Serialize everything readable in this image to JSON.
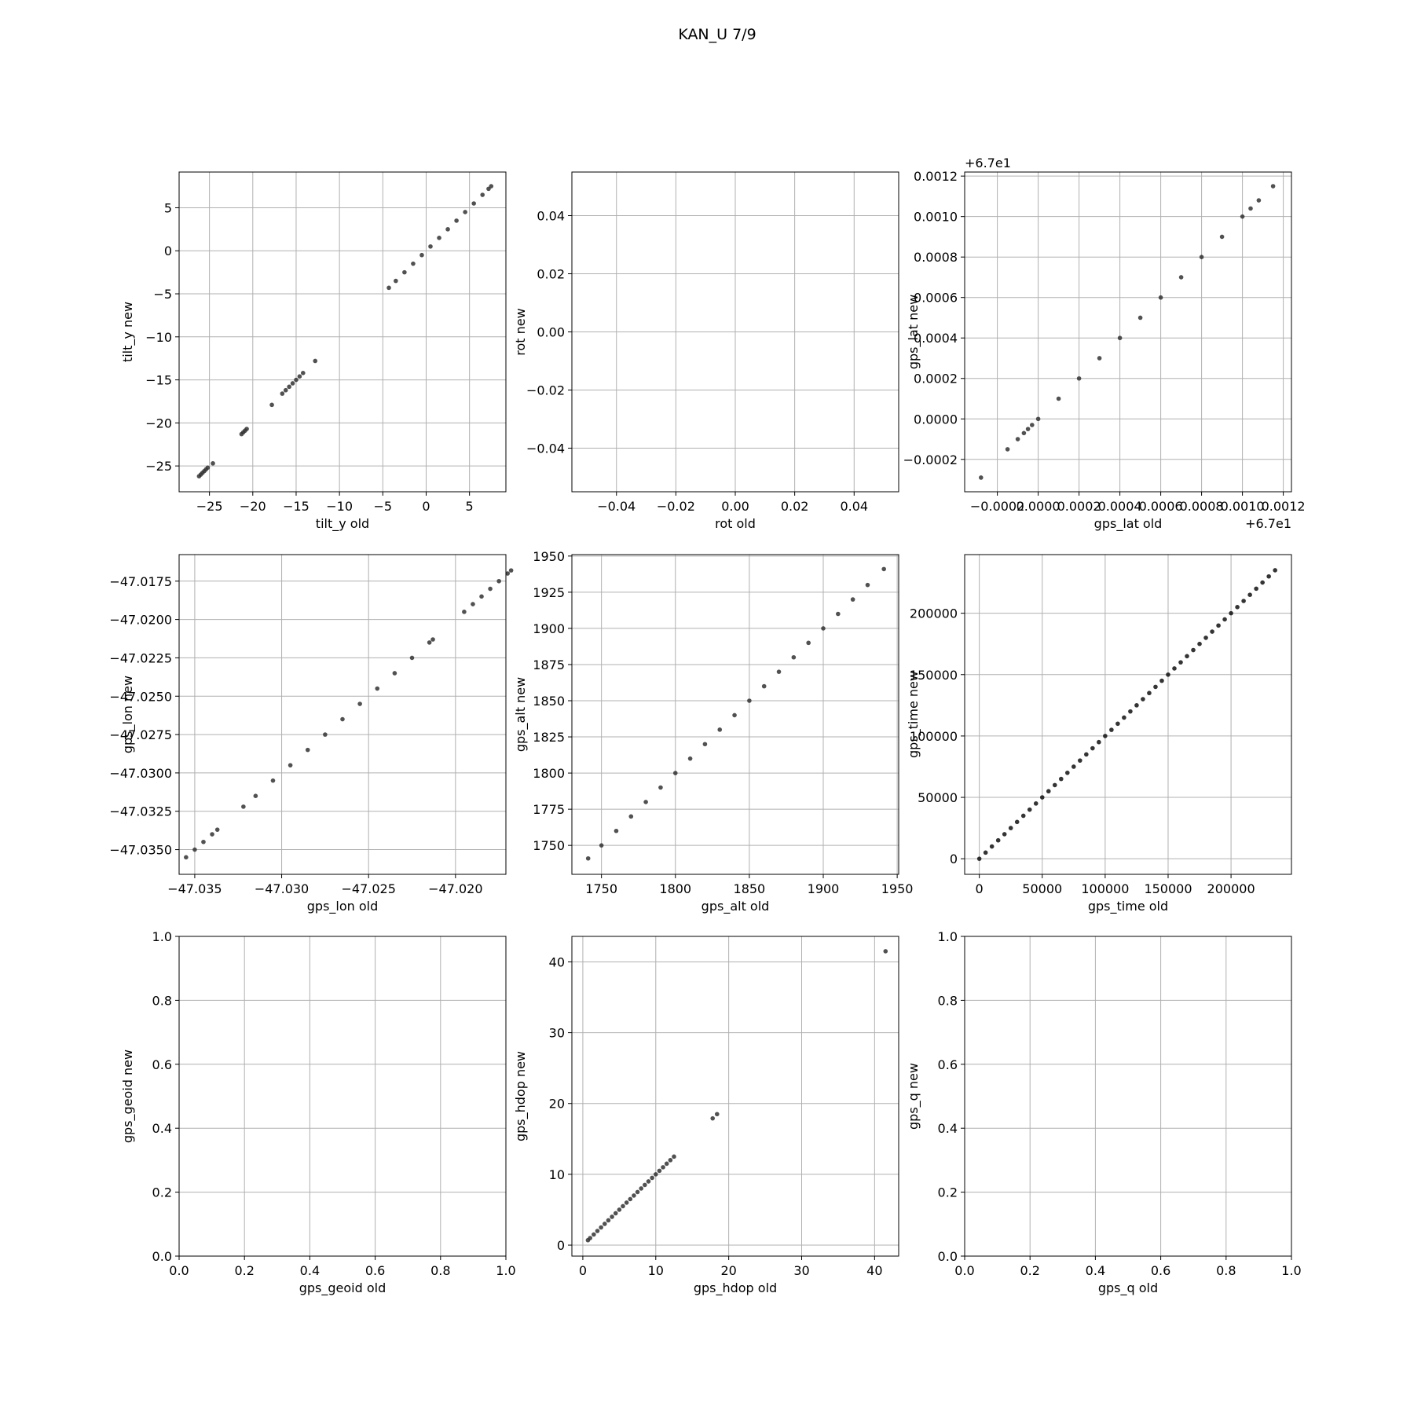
{
  "title": "KAN_U 7/9",
  "chart_data": [
    {
      "type": "scatter",
      "xlabel": "tilt_y old",
      "ylabel": "tilt_y new",
      "grid": true,
      "color": "#333333",
      "xlim": [
        -28.5,
        9.2
      ],
      "ylim": [
        -28,
        9.15
      ],
      "xticks": [
        {
          "value": -25,
          "label": "−25"
        },
        {
          "value": -20,
          "label": "−20"
        },
        {
          "value": -15,
          "label": "−15"
        },
        {
          "value": -10,
          "label": "−10"
        },
        {
          "value": -5,
          "label": "−5"
        },
        0,
        5
      ],
      "yticks": [
        {
          "value": -25,
          "label": "−25"
        },
        {
          "value": -20,
          "label": "−20"
        },
        {
          "value": -15,
          "label": "−15"
        },
        {
          "value": -10,
          "label": "−10"
        },
        {
          "value": -5,
          "label": "−5"
        },
        0,
        5
      ],
      "x": [
        -26.2,
        -26,
        -25.8,
        -25.6,
        -25.4,
        -25.2,
        -24.6,
        -21.3,
        -21.1,
        -20.9,
        -20.7,
        -17.8,
        -16.6,
        -16.2,
        -15.8,
        -15.4,
        -15,
        -14.6,
        -14.2,
        -12.8,
        -4.3,
        -3.5,
        -2.5,
        -1.5,
        -0.5,
        0.5,
        1.5,
        2.5,
        3.5,
        4.5,
        5.5,
        6.5,
        7.2,
        7.5
      ],
      "values": [
        -26.2,
        -26,
        -25.8,
        -25.6,
        -25.4,
        -25.2,
        -24.7,
        -21.3,
        -21.1,
        -20.9,
        -20.7,
        -17.9,
        -16.6,
        -16.2,
        -15.8,
        -15.4,
        -15,
        -14.6,
        -14.2,
        -12.8,
        -4.3,
        -3.5,
        -2.5,
        -1.5,
        -0.5,
        0.5,
        1.5,
        2.5,
        3.5,
        4.5,
        5.5,
        6.5,
        7.2,
        7.5
      ]
    },
    {
      "type": "scatter",
      "xlabel": "rot old",
      "ylabel": "rot new",
      "grid": true,
      "color": "#333333",
      "xlim": [
        -0.055,
        0.055
      ],
      "ylim": [
        -0.055,
        0.055
      ],
      "xticks": [
        {
          "value": -0.04,
          "label": "−0.04"
        },
        {
          "value": -0.02,
          "label": "−0.02"
        },
        {
          "value": 0,
          "label": "0.00"
        },
        {
          "value": 0.02,
          "label": "0.02"
        },
        {
          "value": 0.04,
          "label": "0.04"
        }
      ],
      "yticks": [
        {
          "value": -0.04,
          "label": "−0.04"
        },
        {
          "value": -0.02,
          "label": "−0.02"
        },
        {
          "value": 0,
          "label": "0.00"
        },
        {
          "value": 0.02,
          "label": "0.02"
        },
        {
          "value": 0.04,
          "label": "0.04"
        }
      ]
    },
    {
      "type": "scatter",
      "xlabel": "gps_lat old",
      "ylabel": "gps_lat new",
      "grid": true,
      "color": "#333333",
      "x_offset_text": "+6.7e1",
      "y_offset_text": "+6.7e1",
      "xlim": [
        -0.00036,
        0.00124
      ],
      "ylim": [
        -0.00036,
        0.00122
      ],
      "xticks": [
        {
          "value": -0.0002,
          "label": "−0.0002"
        },
        {
          "value": 0,
          "label": "0.0000"
        },
        0.0002,
        0.0004,
        0.0006,
        0.0008,
        {
          "value": 0.001,
          "label": "0.0010"
        },
        0.0012
      ],
      "yticks": [
        {
          "value": -0.0002,
          "label": "−0.0002"
        },
        {
          "value": 0,
          "label": "0.0000"
        },
        0.0002,
        0.0004,
        0.0006,
        0.0008,
        {
          "value": 0.001,
          "label": "0.0010"
        },
        0.0012
      ],
      "x": [
        -0.00028,
        -0.00015,
        -0.0001,
        -7e-05,
        -5e-05,
        -3e-05,
        0,
        0.0001,
        0.0002,
        0.0003,
        0.0004,
        0.0005,
        0.0006,
        0.0007,
        0.0008,
        0.0009,
        0.001,
        0.00104,
        0.00108,
        0.00115
      ],
      "values": [
        -0.00029,
        -0.00015,
        -0.0001,
        -7e-05,
        -5e-05,
        -3e-05,
        0,
        0.0001,
        0.0002,
        0.0003,
        0.0004,
        0.0005,
        0.0006,
        0.0007,
        0.0008,
        0.0009,
        0.001,
        0.00104,
        0.00108,
        0.00115
      ]
    },
    {
      "type": "scatter",
      "xlabel": "gps_lon old",
      "ylabel": "gps_lon new",
      "grid": true,
      "color": "#333333",
      "xlim": [
        -47.0359,
        -47.0171
      ],
      "ylim": [
        -47.03661,
        -47.01577
      ],
      "xticks": [
        {
          "value": -47.035,
          "label": "−47.035"
        },
        {
          "value": -47.03,
          "label": "−47.030"
        },
        {
          "value": -47.025,
          "label": "−47.025"
        },
        {
          "value": -47.02,
          "label": "−47.020"
        }
      ],
      "yticks": [
        {
          "value": -47.035,
          "label": "−47.0350"
        },
        {
          "value": -47.0325,
          "label": "−47.0325"
        },
        {
          "value": -47.03,
          "label": "−47.0300"
        },
        {
          "value": -47.0275,
          "label": "−47.0275"
        },
        {
          "value": -47.025,
          "label": "−47.0250"
        },
        {
          "value": -47.0225,
          "label": "−47.0225"
        },
        {
          "value": -47.02,
          "label": "−47.0200"
        },
        {
          "value": -47.0175,
          "label": "−47.0175"
        }
      ],
      "x": [
        -47.0355,
        -47.035,
        -47.0345,
        -47.034,
        -47.0337,
        -47.0322,
        -47.0315,
        -47.0305,
        -47.0295,
        -47.0285,
        -47.0275,
        -47.0265,
        -47.0255,
        -47.0245,
        -47.0235,
        -47.0225,
        -47.0215,
        -47.0213,
        -47.0195,
        -47.019,
        -47.0185,
        -47.018,
        -47.0175,
        -47.017,
        -47.0168
      ],
      "values": [
        -47.0355,
        -47.035,
        -47.0345,
        -47.034,
        -47.0337,
        -47.0322,
        -47.0315,
        -47.0305,
        -47.0295,
        -47.0285,
        -47.0275,
        -47.0265,
        -47.0255,
        -47.0245,
        -47.0235,
        -47.0225,
        -47.0215,
        -47.0213,
        -47.0195,
        -47.019,
        -47.0185,
        -47.018,
        -47.0175,
        -47.017,
        -47.0168
      ]
    },
    {
      "type": "scatter",
      "xlabel": "gps_alt old",
      "ylabel": "gps_alt new",
      "grid": true,
      "color": "#333333",
      "xlim": [
        1730,
        1951
      ],
      "ylim": [
        1730,
        1951
      ],
      "xticks": [
        1750,
        1800,
        1850,
        1900,
        1950
      ],
      "yticks": [
        1750,
        1775,
        1800,
        1825,
        1850,
        1875,
        1900,
        1925,
        1950
      ],
      "x": [
        1741,
        1750,
        1760,
        1770,
        1780,
        1790,
        1800,
        1810,
        1820,
        1830,
        1840,
        1850,
        1860,
        1870,
        1880,
        1890,
        1900,
        1910,
        1920,
        1930,
        1941
      ],
      "values": [
        1741,
        1750,
        1760,
        1770,
        1780,
        1790,
        1800,
        1810,
        1820,
        1830,
        1840,
        1850,
        1860,
        1870,
        1880,
        1890,
        1900,
        1910,
        1920,
        1930,
        1941
      ]
    },
    {
      "type": "scatter",
      "xlabel": "gps_time old",
      "ylabel": "gps_time new",
      "grid": true,
      "color": "#111111",
      "xlim": [
        -11636,
        248000
      ],
      "ylim": [
        -12687,
        247761
      ],
      "xticks": [
        0,
        50000,
        100000,
        150000,
        200000
      ],
      "yticks": [
        0,
        50000,
        100000,
        150000,
        200000
      ],
      "x": [
        0,
        5000,
        10000,
        15000,
        20000,
        25000,
        30000,
        35000,
        40000,
        45000,
        50000,
        55000,
        60000,
        65000,
        70000,
        75000,
        80000,
        85000,
        90000,
        95000,
        100000,
        105000,
        110000,
        115000,
        120000,
        125000,
        130000,
        135000,
        140000,
        145000,
        150000,
        155000,
        160000,
        165000,
        170000,
        175000,
        180000,
        185000,
        190000,
        195000,
        200000,
        205000,
        210000,
        215000,
        220000,
        225000,
        230000,
        235000
      ],
      "values": [
        0,
        5000,
        10000,
        15000,
        20000,
        25000,
        30000,
        35000,
        40000,
        45000,
        50000,
        55000,
        60000,
        65000,
        70000,
        75000,
        80000,
        85000,
        90000,
        95000,
        100000,
        105000,
        110000,
        115000,
        120000,
        125000,
        130000,
        135000,
        140000,
        145000,
        150000,
        155000,
        160000,
        165000,
        170000,
        175000,
        180000,
        185000,
        190000,
        195000,
        200000,
        205000,
        210000,
        215000,
        220000,
        225000,
        230000,
        235000
      ]
    },
    {
      "type": "scatter",
      "xlabel": "gps_geoid old",
      "ylabel": "gps_geoid new",
      "grid": true,
      "color": "#333333",
      "xlim": [
        0,
        1
      ],
      "ylim": [
        0,
        1
      ],
      "xticks": [
        {
          "value": 0,
          "label": "0.0"
        },
        0.2,
        0.4,
        0.6,
        0.8,
        {
          "value": 1,
          "label": "1.0"
        }
      ],
      "yticks": [
        {
          "value": 0,
          "label": "0.0"
        },
        0.2,
        0.4,
        0.6,
        0.8,
        {
          "value": 1,
          "label": "1.0"
        }
      ]
    },
    {
      "type": "scatter",
      "xlabel": "gps_hdop old",
      "ylabel": "gps_hdop new",
      "grid": true,
      "color": "#333333",
      "xlim": [
        -1.5,
        43.3
      ],
      "ylim": [
        -1.55,
        43.6
      ],
      "xticks": [
        0,
        10,
        20,
        30,
        40
      ],
      "yticks": [
        0,
        10,
        20,
        30,
        40
      ],
      "x": [
        0.7,
        1,
        1.5,
        2,
        2.5,
        3,
        3.5,
        4,
        4.5,
        5,
        5.5,
        6,
        6.5,
        7,
        7.5,
        8,
        8.5,
        9,
        9.5,
        10,
        10.5,
        11,
        11.5,
        12,
        12.5,
        17.8,
        18.4,
        41.5
      ],
      "values": [
        0.7,
        1,
        1.5,
        2,
        2.5,
        3,
        3.5,
        4,
        4.5,
        5,
        5.5,
        6,
        6.5,
        7,
        7.5,
        8,
        8.5,
        9,
        9.5,
        10,
        10.5,
        11,
        11.5,
        12,
        12.5,
        17.9,
        18.5,
        41.5
      ]
    },
    {
      "type": "scatter",
      "xlabel": "gps_q old",
      "ylabel": "gps_q new",
      "grid": true,
      "color": "#333333",
      "xlim": [
        0,
        1
      ],
      "ylim": [
        0,
        1
      ],
      "xticks": [
        {
          "value": 0,
          "label": "0.0"
        },
        0.2,
        0.4,
        0.6,
        0.8,
        {
          "value": 1,
          "label": "1.0"
        }
      ],
      "yticks": [
        {
          "value": 0,
          "label": "0.0"
        },
        0.2,
        0.4,
        0.6,
        0.8,
        {
          "value": 1,
          "label": "1.0"
        }
      ]
    }
  ]
}
